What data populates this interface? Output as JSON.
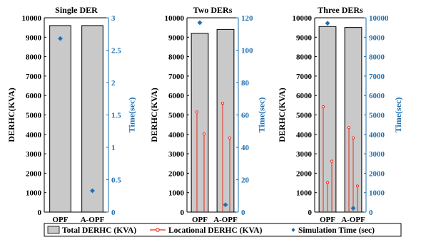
{
  "colors": {
    "bar_fill": "#c9c9c9",
    "bar_stroke": "#000000",
    "locational": "#e8291c",
    "time": "#1f6fb0",
    "right_axis": "#1f6fb0"
  },
  "chart_data": [
    {
      "type": "bar",
      "title": "Single DER",
      "categories": [
        "OPF",
        "A-OPF"
      ],
      "ylabel": "DERHC(KVA)",
      "ylim": [
        0,
        10000
      ],
      "yticks": [
        0,
        1000,
        2000,
        3000,
        4000,
        5000,
        6000,
        7000,
        8000,
        9000,
        10000
      ],
      "y2label": "Time(sec)",
      "y2lim": [
        0,
        3
      ],
      "y2ticks": [
        0,
        0.5,
        1,
        1.5,
        2,
        2.5,
        3
      ],
      "y2ticklabels": [
        "0",
        "0.5",
        "1",
        "1.5",
        "2",
        "2.5",
        "3"
      ],
      "total_derhc": [
        9600,
        9600
      ],
      "locational_derhc": [
        [],
        []
      ],
      "simulation_time": [
        2.68,
        0.33
      ]
    },
    {
      "type": "bar",
      "title": "Two DERs",
      "categories": [
        "OPF",
        "A-OPF"
      ],
      "ylabel": "DERHC(KVA)",
      "ylim": [
        0,
        10000
      ],
      "yticks": [
        0,
        1000,
        2000,
        3000,
        4000,
        5000,
        6000,
        7000,
        8000,
        9000,
        10000
      ],
      "y2label": "Time(sec)",
      "y2lim": [
        0,
        120
      ],
      "y2ticks": [
        0,
        20,
        40,
        60,
        80,
        100,
        120
      ],
      "y2ticklabels": [
        "0",
        "20",
        "40",
        "60",
        "80",
        "100",
        "120"
      ],
      "total_derhc": [
        9200,
        9400
      ],
      "locational_derhc": [
        [
          5150,
          4020
        ],
        [
          5600,
          3820
        ]
      ],
      "simulation_time": [
        117,
        4.5
      ]
    },
    {
      "type": "bar",
      "title": "Three DERs",
      "categories": [
        "OPF",
        "A-OPF"
      ],
      "ylabel": "DERHC(KVA)",
      "ylim": [
        0,
        10000
      ],
      "yticks": [
        0,
        1000,
        2000,
        3000,
        4000,
        5000,
        6000,
        7000,
        8000,
        9000,
        10000
      ],
      "y2label": "Time(sec)",
      "y2lim": [
        0,
        10000
      ],
      "y2ticks": [
        0,
        1000,
        2000,
        3000,
        4000,
        5000,
        6000,
        7000,
        8000,
        9000,
        10000
      ],
      "y2ticklabels": [
        "0",
        "1000",
        "2000",
        "3000",
        "4000",
        "5000",
        "6000",
        "7000",
        "8000",
        "9000",
        "10000"
      ],
      "total_derhc": [
        9550,
        9500
      ],
      "locational_derhc": [
        [
          5420,
          1520,
          2620
        ],
        [
          4350,
          3820,
          1340
        ]
      ],
      "simulation_time": [
        9720,
        200
      ]
    }
  ],
  "legend": {
    "position": "bottom",
    "total": "Total DERHC (KVA)",
    "locational": "Locational DERHC (KVA)",
    "time": "Simulation Time (sec)"
  }
}
